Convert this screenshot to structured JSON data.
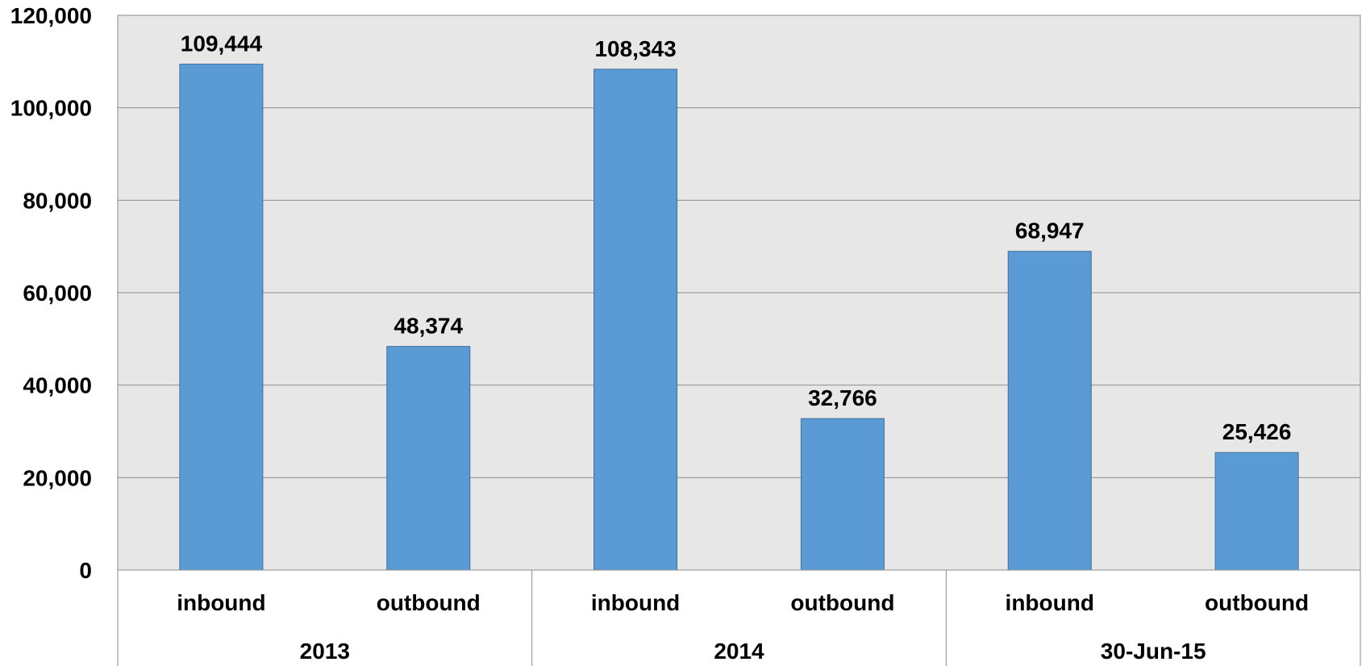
{
  "chart_data": {
    "type": "bar",
    "title": "",
    "xlabel": "",
    "ylabel": "",
    "ylim": [
      0,
      120000
    ],
    "yticks": [
      0,
      20000,
      40000,
      60000,
      80000,
      100000,
      120000
    ],
    "ytick_labels": [
      "0",
      "20,000",
      "40,000",
      "60,000",
      "80,000",
      "100,000",
      "120,000"
    ],
    "grid": true,
    "legend": "none",
    "groups": [
      {
        "label": "2013",
        "bars": [
          {
            "category": "inbound",
            "value": 109444,
            "data_label": "109,444"
          },
          {
            "category": "outbound",
            "value": 48374,
            "data_label": "48,374"
          }
        ]
      },
      {
        "label": "2014",
        "bars": [
          {
            "category": "inbound",
            "value": 108343,
            "data_label": "108,343"
          },
          {
            "category": "outbound",
            "value": 32766,
            "data_label": "32,766"
          }
        ]
      },
      {
        "label": "30-Jun-15",
        "bars": [
          {
            "category": "inbound",
            "value": 68947,
            "data_label": "68,947"
          },
          {
            "category": "outbound",
            "value": 25426,
            "data_label": "25,426"
          }
        ]
      }
    ],
    "colors": {
      "bar_fill": "#5b9bd5",
      "bar_stroke": "#41719c",
      "plot_background": "#e7e7e7",
      "gridline": "#8c8c8c",
      "axis_line": "#8c8c8c"
    }
  }
}
